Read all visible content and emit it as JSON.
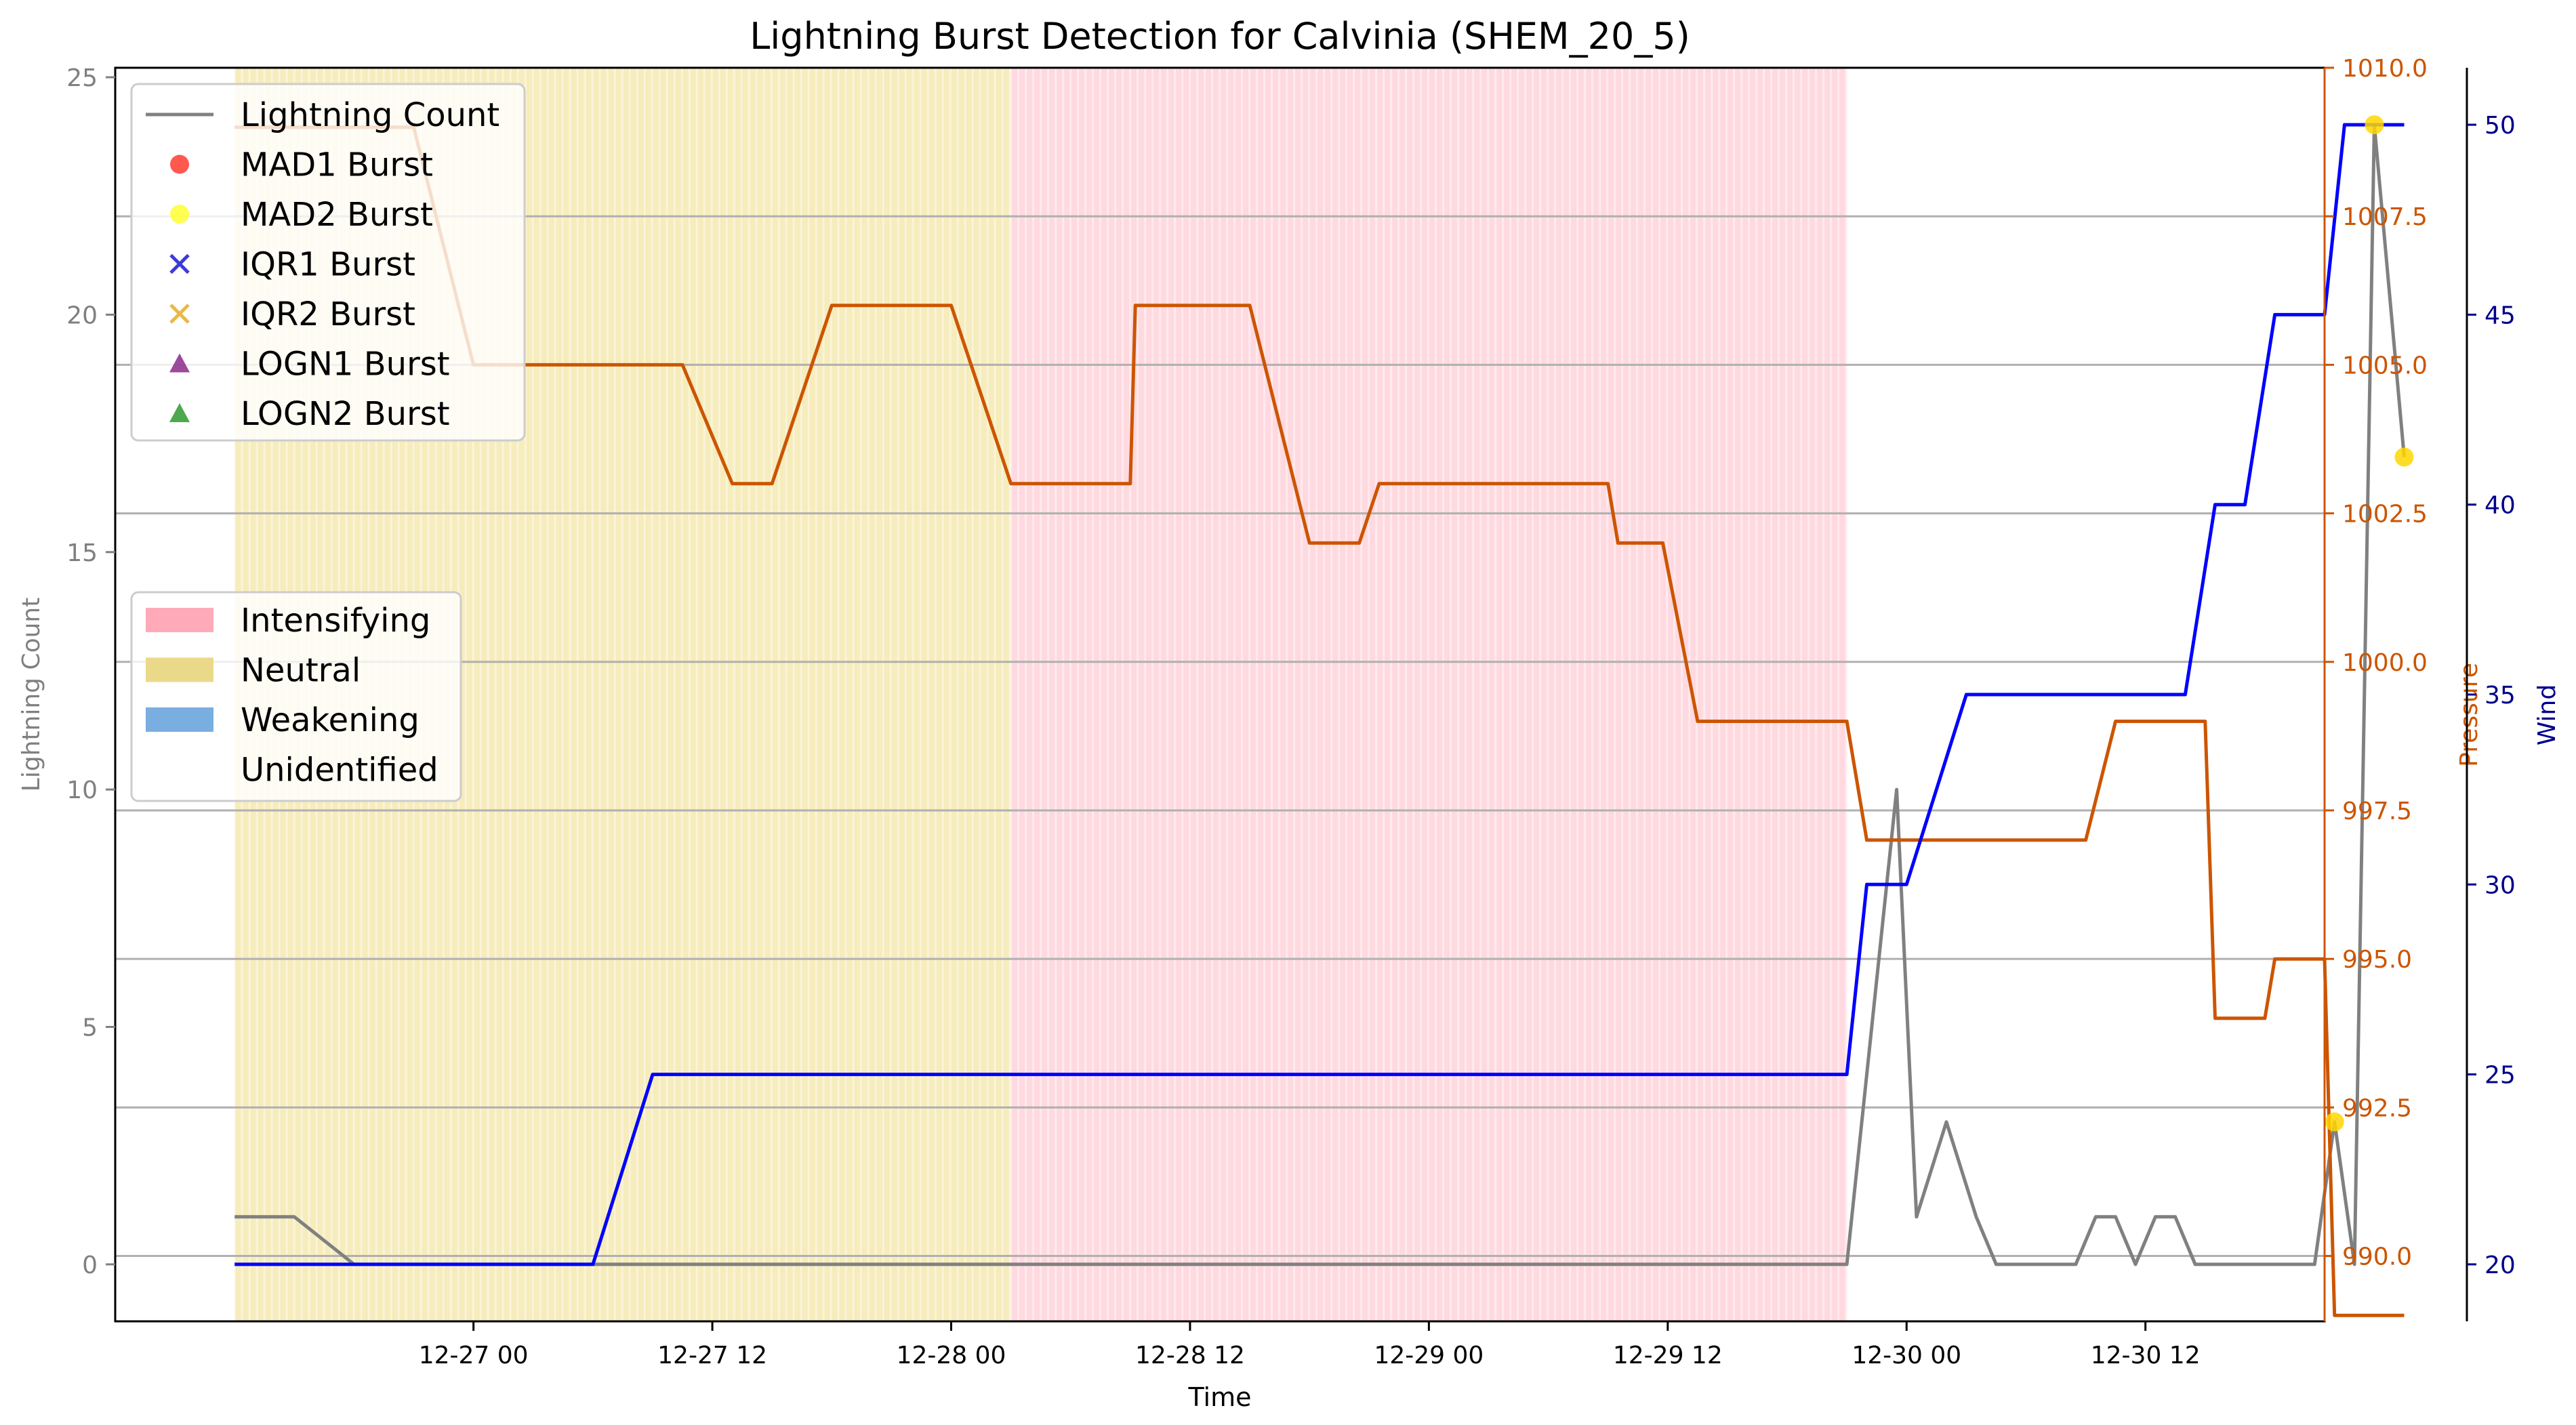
{
  "chart_data": {
    "type": "line",
    "title": "Lightning Burst Detection for Calvinia (SHEM_20_5)",
    "xlabel": "Time",
    "x_range": [
      "2026-12-26 06:00",
      "2026-12-30 21:00"
    ],
    "x_ticks": [
      {
        "t": "2026-12-27 00:00",
        "label": "12-27 00"
      },
      {
        "t": "2026-12-27 12:00",
        "label": "12-27 12"
      },
      {
        "t": "2026-12-28 00:00",
        "label": "12-28 00"
      },
      {
        "t": "2026-12-28 12:00",
        "label": "12-28 12"
      },
      {
        "t": "2026-12-29 00:00",
        "label": "12-29 00"
      },
      {
        "t": "2026-12-29 12:00",
        "label": "12-29 12"
      },
      {
        "t": "2026-12-30 00:00",
        "label": "12-30 00"
      },
      {
        "t": "2026-12-30 12:00",
        "label": "12-30 12"
      }
    ],
    "axes": {
      "left": {
        "label": "Lightning Count",
        "ylim": [
          -1.2,
          25.2
        ],
        "ticks": [
          0,
          5,
          10,
          15,
          20,
          25
        ],
        "tick_labels": [
          "0",
          "5",
          "10",
          "15",
          "20",
          "25"
        ],
        "color": "#808080"
      },
      "right1": {
        "label": "Pressure",
        "ylim": [
          988.9,
          1010.0
        ],
        "ticks": [
          990.0,
          992.5,
          995.0,
          997.5,
          1000.0,
          1002.5,
          1005.0,
          1007.5,
          1010.0
        ],
        "tick_labels": [
          "990.0",
          "992.5",
          "995.0",
          "997.5",
          "1000.0",
          "1002.5",
          "1005.0",
          "1007.5",
          "1010.0"
        ],
        "color": "#cc5500"
      },
      "right2": {
        "label": "Wind",
        "ylim": [
          18.5,
          51.5
        ],
        "ticks": [
          20,
          25,
          30,
          35,
          40,
          45,
          50
        ],
        "tick_labels": [
          "20",
          "25",
          "30",
          "35",
          "40",
          "45",
          "50"
        ],
        "color": "#00008b"
      }
    },
    "grid": "horizontal on pressure axis",
    "legend_placement": [
      "upper-left",
      "center-left"
    ],
    "series": [
      {
        "name": "Lightning Count",
        "axis": "left",
        "color": "#808080",
        "points": [
          [
            "2026-12-26 12:00",
            1
          ],
          [
            "2026-12-26 15:00",
            1
          ],
          [
            "2026-12-26 18:00",
            0
          ],
          [
            "2026-12-29 21:00",
            0
          ],
          [
            "2026-12-29 22:00",
            4
          ],
          [
            "2026-12-29 23:30",
            10
          ],
          [
            "2026-12-30 00:30",
            1
          ],
          [
            "2026-12-30 02:00",
            3
          ],
          [
            "2026-12-30 03:30",
            1
          ],
          [
            "2026-12-30 04:30",
            0
          ],
          [
            "2026-12-30 06:30",
            0
          ],
          [
            "2026-12-30 08:30",
            0
          ],
          [
            "2026-12-30 09:30",
            1
          ],
          [
            "2026-12-30 10:30",
            1
          ],
          [
            "2026-12-30 11:30",
            0
          ],
          [
            "2026-12-30 12:30",
            1
          ],
          [
            "2026-12-30 13:30",
            1
          ],
          [
            "2026-12-30 14:30",
            0
          ],
          [
            "2026-12-30 20:30",
            0
          ],
          [
            "2026-12-30 21:30",
            3
          ],
          [
            "2026-12-30 22:30",
            0
          ],
          [
            "2026-12-30 23:30",
            24
          ],
          [
            "2026-12-31 01:00",
            17
          ]
        ]
      },
      {
        "name": "Pressure",
        "axis": "right1",
        "color": "#cc5500",
        "points": [
          [
            "2026-12-26 12:00",
            1009.0
          ],
          [
            "2026-12-26 21:00",
            1009.0
          ],
          [
            "2026-12-27 00:00",
            1005.0
          ],
          [
            "2026-12-27 10:30",
            1005.0
          ],
          [
            "2026-12-27 13:00",
            1003.0
          ],
          [
            "2026-12-27 15:00",
            1003.0
          ],
          [
            "2026-12-27 18:00",
            1006.0
          ],
          [
            "2026-12-28 00:00",
            1006.0
          ],
          [
            "2026-12-28 03:00",
            1003.0
          ],
          [
            "2026-12-28 09:00",
            1003.0
          ],
          [
            "2026-12-28 09:15",
            1006.0
          ],
          [
            "2026-12-28 15:00",
            1006.0
          ],
          [
            "2026-12-28 18:00",
            1002.0
          ],
          [
            "2026-12-28 20:30",
            1002.0
          ],
          [
            "2026-12-28 21:30",
            1003.0
          ],
          [
            "2026-12-29 09:00",
            1003.0
          ],
          [
            "2026-12-29 09:30",
            1002.0
          ],
          [
            "2026-12-29 11:45",
            1002.0
          ],
          [
            "2026-12-29 13:30",
            999.0
          ],
          [
            "2026-12-29 21:00",
            999.0
          ],
          [
            "2026-12-29 22:00",
            997.0
          ],
          [
            "2026-12-30 09:00",
            997.0
          ],
          [
            "2026-12-30 10:30",
            999.0
          ],
          [
            "2026-12-30 15:00",
            999.0
          ],
          [
            "2026-12-30 15:30",
            994.0
          ],
          [
            "2026-12-30 18:00",
            994.0
          ],
          [
            "2026-12-30 18:30",
            995.0
          ],
          [
            "2026-12-30 21:00",
            995.0
          ],
          [
            "2026-12-30 21:30",
            989.0
          ],
          [
            "2026-12-31 01:00",
            989.0
          ]
        ]
      },
      {
        "name": "Wind",
        "axis": "right2",
        "color": "#0000ff",
        "points": [
          [
            "2026-12-26 12:00",
            20
          ],
          [
            "2026-12-27 06:00",
            20
          ],
          [
            "2026-12-27 09:00",
            25
          ],
          [
            "2026-12-29 21:00",
            25
          ],
          [
            "2026-12-29 22:00",
            30
          ],
          [
            "2026-12-30 00:00",
            30
          ],
          [
            "2026-12-30 03:00",
            35
          ],
          [
            "2026-12-30 14:00",
            35
          ],
          [
            "2026-12-30 15:30",
            40
          ],
          [
            "2026-12-30 17:00",
            40
          ],
          [
            "2026-12-30 18:30",
            45
          ],
          [
            "2026-12-30 21:00",
            45
          ],
          [
            "2026-12-30 22:00",
            50
          ],
          [
            "2026-12-31 01:00",
            50
          ]
        ]
      }
    ],
    "markers": [
      {
        "series": "MAD2 Burst",
        "color": "#ffd700",
        "points": [
          [
            "2026-12-30 21:30",
            3
          ],
          [
            "2026-12-30 23:30",
            24
          ],
          [
            "2026-12-31 01:00",
            17
          ]
        ]
      }
    ],
    "phases": [
      {
        "label": "Neutral",
        "start": "2026-12-26 12:00",
        "end": "2026-12-28 03:00",
        "color": "#f3e6a6"
      },
      {
        "label": "Intensifying",
        "start": "2026-12-28 03:00",
        "end": "2026-12-29 21:00",
        "color": "#ffccd6"
      }
    ],
    "legend1": [
      {
        "label": "Lightning Count",
        "kind": "line",
        "color": "#808080"
      },
      {
        "label": "MAD1 Burst",
        "kind": "circle",
        "color": "#ff3b30"
      },
      {
        "label": "MAD2 Burst",
        "kind": "circle",
        "color": "#ffff33"
      },
      {
        "label": "IQR1 Burst",
        "kind": "x",
        "color": "#3b3bd9"
      },
      {
        "label": "IQR2 Burst",
        "kind": "x",
        "color": "#e8b84a"
      },
      {
        "label": "LOGN1 Burst",
        "kind": "triangle",
        "color": "#8b2a8b"
      },
      {
        "label": "LOGN2 Burst",
        "kind": "triangle",
        "color": "#2e9a2e"
      }
    ],
    "legend2": [
      {
        "label": "Intensifying",
        "color": "#ffaab8"
      },
      {
        "label": "Neutral",
        "color": "#ebd98a"
      },
      {
        "label": "Weakening",
        "color": "#7aaee0"
      },
      {
        "label": "Unidentified",
        "color": "#ffffff"
      }
    ]
  }
}
